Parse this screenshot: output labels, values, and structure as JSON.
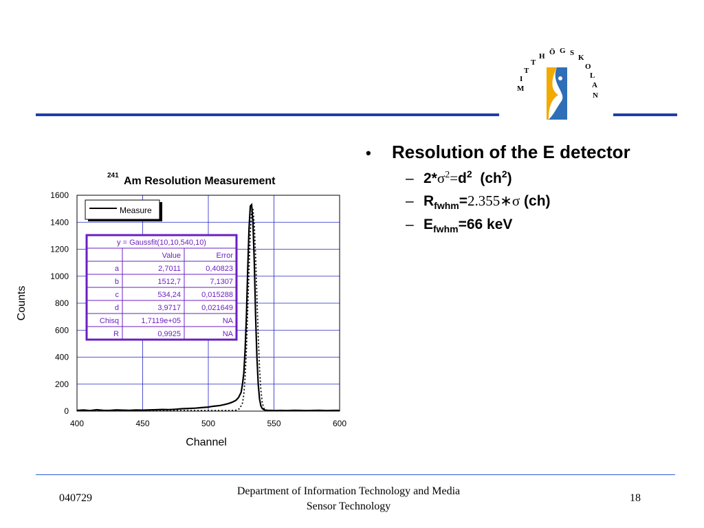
{
  "slide": {
    "bullet_main": "Resolution of the E detector",
    "sub1": {
      "pre": "2*",
      "sigma": "σ",
      "sq": "2",
      "eq": "=",
      "d": "d",
      "dsq": "2",
      "unit_open": "(ch",
      "unit_sq": "2",
      "unit_close": ")"
    },
    "sub2": {
      "r": "R",
      "r_sub": "fwhm",
      "eq": "=",
      "val": "2.355",
      "times": "∗",
      "sigma": "σ",
      "unit": "(ch)"
    },
    "sub3": {
      "e": "E",
      "e_sub": "fwhm",
      "val": "=66 keV"
    }
  },
  "logo": {
    "text": "MITTHÖGSKOLAN",
    "colors": {
      "yellow": "#f2a900",
      "blue": "#2e6fb8"
    }
  },
  "footer": {
    "date": "040729",
    "line1": "Department of Information Technology and Media",
    "line2": "Sensor Technology",
    "page": "18"
  },
  "colors": {
    "rule": "#1f3fa8",
    "table_border": "#6a1fc0",
    "table_text": "#6a1fc0",
    "grid": "#2020c0"
  },
  "chart_data": {
    "type": "line",
    "title_sup": "241",
    "title": "Am Resolution Measurement",
    "xlabel": "Channel",
    "ylabel": "Counts",
    "xlim": [
      400,
      600
    ],
    "ylim": [
      0,
      1600
    ],
    "xticks": [
      400,
      450,
      500,
      550,
      600
    ],
    "yticks": [
      0,
      200,
      400,
      600,
      800,
      1000,
      1200,
      1400,
      1600
    ],
    "grid": true,
    "legend": {
      "position": "top-left",
      "entries": [
        "Measure"
      ]
    },
    "series": [
      {
        "name": "Measure",
        "style": "solid",
        "x": [
          400,
          405,
          410,
          415,
          420,
          425,
          430,
          435,
          440,
          445,
          450,
          455,
          460,
          465,
          470,
          475,
          480,
          485,
          490,
          495,
          500,
          503,
          506,
          509,
          512,
          515,
          518,
          521,
          523,
          525,
          526,
          527,
          528,
          529,
          530,
          531,
          532,
          533,
          534,
          535,
          536,
          537,
          538,
          539,
          540,
          541,
          542,
          543,
          545,
          548,
          551,
          555,
          560,
          565,
          570,
          575,
          580,
          585,
          590,
          595,
          600
        ],
        "y": [
          5,
          8,
          4,
          10,
          6,
          5,
          9,
          7,
          6,
          8,
          7,
          9,
          10,
          12,
          11,
          14,
          18,
          20,
          22,
          26,
          30,
          35,
          38,
          42,
          48,
          55,
          65,
          80,
          100,
          140,
          200,
          280,
          450,
          700,
          1050,
          1350,
          1520,
          1530,
          1400,
          1100,
          700,
          400,
          200,
          90,
          40,
          20,
          12,
          8,
          6,
          5,
          4,
          5,
          4,
          6,
          5,
          4,
          5,
          6,
          4,
          5,
          5
        ]
      },
      {
        "name": "",
        "style": "dotted",
        "x": [
          400,
          450,
          500,
          515,
          520,
          522,
          524,
          526,
          527,
          528,
          529,
          530,
          531,
          532,
          533,
          534,
          535,
          536,
          537,
          538,
          539,
          540,
          541,
          542,
          543,
          545,
          550,
          560,
          600
        ],
        "y": [
          4,
          4,
          4,
          4,
          5,
          8,
          20,
          60,
          120,
          250,
          450,
          750,
          1050,
          1320,
          1480,
          1500,
          1380,
          1150,
          850,
          560,
          320,
          160,
          70,
          28,
          10,
          4,
          4,
          4,
          4
        ]
      }
    ],
    "fit_table": {
      "title": "y = Gaussfit(10,10,540,10)",
      "headers": [
        "",
        "Value",
        "Error"
      ],
      "rows": [
        [
          "a",
          "2,7011",
          "0,40823"
        ],
        [
          "b",
          "1512,7",
          "7,1307"
        ],
        [
          "c",
          "534,24",
          "0,015288"
        ],
        [
          "d",
          "3,9717",
          "0,021649"
        ],
        [
          "Chisq",
          "1,7119e+05",
          "NA"
        ],
        [
          "R",
          "0,9925",
          "NA"
        ]
      ]
    }
  }
}
